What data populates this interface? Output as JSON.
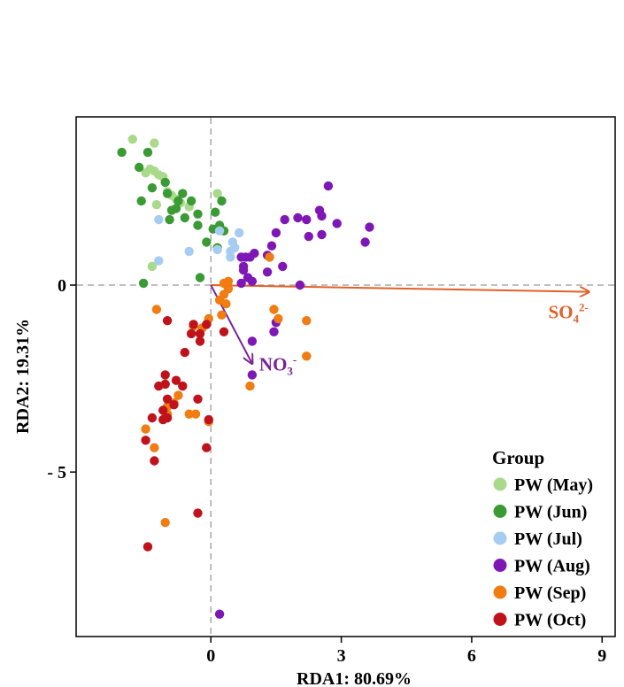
{
  "chart_data": {
    "type": "scatter",
    "title": "",
    "xlabel": "RDA1: 80.69%",
    "ylabel": "RDA2: 19.31%",
    "xlim": [
      -3.1,
      9.3
    ],
    "ylim": [
      -9.4,
      4.5
    ],
    "xticks": [
      0,
      3,
      6,
      9
    ],
    "xtick_labels": [
      "0",
      "3",
      "6",
      "9"
    ],
    "yticks": [
      0,
      -5
    ],
    "ytick_labels": [
      "0",
      "- 5"
    ],
    "reference_lines": {
      "x": 0,
      "y": 0
    },
    "legend_title": "Group",
    "legend_position": "bottom-right",
    "arrows": [
      {
        "name": "SO4",
        "label": "SO",
        "label_sub": "4",
        "label_sup": "2-",
        "x": 8.7,
        "y": -0.18,
        "color": "#E2602A"
      },
      {
        "name": "NO3",
        "label": "NO",
        "label_sub": "3",
        "label_sup": "-",
        "x": 0.95,
        "y": -2.1,
        "color": "#7A2296"
      }
    ],
    "series": [
      {
        "name": "PW (May)",
        "color": "#A9DA8C",
        "points": [
          [
            -1.8,
            3.9
          ],
          [
            -1.3,
            3.8
          ],
          [
            -1.5,
            3.0
          ],
          [
            -1.4,
            3.1
          ],
          [
            -1.3,
            3.05
          ],
          [
            -1.2,
            2.95
          ],
          [
            -1.1,
            2.9
          ],
          [
            -1.0,
            2.5
          ],
          [
            -0.9,
            2.4
          ],
          [
            -0.8,
            2.3
          ],
          [
            -0.7,
            2.2
          ],
          [
            -0.5,
            2.1
          ],
          [
            -1.25,
            2.15
          ],
          [
            0.15,
            2.45
          ],
          [
            -1.35,
            0.5
          ]
        ]
      },
      {
        "name": "PW (Jun)",
        "color": "#3A9A33",
        "points": [
          [
            -2.05,
            3.55
          ],
          [
            -1.45,
            3.55
          ],
          [
            -1.65,
            3.15
          ],
          [
            -1.35,
            2.6
          ],
          [
            -1.05,
            2.75
          ],
          [
            -1.0,
            2.45
          ],
          [
            -0.65,
            2.45
          ],
          [
            -1.6,
            2.25
          ],
          [
            -0.9,
            2.0
          ],
          [
            -0.8,
            2.05
          ],
          [
            -0.75,
            2.25
          ],
          [
            -0.45,
            2.25
          ],
          [
            -0.3,
            1.9
          ],
          [
            -0.6,
            1.8
          ],
          [
            -0.95,
            1.75
          ],
          [
            -0.3,
            1.6
          ],
          [
            0.25,
            2.25
          ],
          [
            0.1,
            1.95
          ],
          [
            0.2,
            1.6
          ],
          [
            0.05,
            1.5
          ],
          [
            0.3,
            1.45
          ],
          [
            -0.1,
            1.15
          ],
          [
            0.15,
            1.0
          ],
          [
            -1.55,
            0.05
          ],
          [
            -0.25,
            0.2
          ]
        ]
      },
      {
        "name": "PW (Jul)",
        "color": "#A6CDF1",
        "points": [
          [
            -1.2,
            1.75
          ],
          [
            0.2,
            1.45
          ],
          [
            0.65,
            1.4
          ],
          [
            0.5,
            1.15
          ],
          [
            0.55,
            1.0
          ],
          [
            0.45,
            0.9
          ],
          [
            -0.5,
            0.9
          ],
          [
            0.45,
            0.75
          ],
          [
            -1.2,
            0.65
          ],
          [
            0.15,
            0.95
          ]
        ]
      },
      {
        "name": "PW (Aug)",
        "color": "#7E17B6",
        "points": [
          [
            2.7,
            2.65
          ],
          [
            2.5,
            2.0
          ],
          [
            2.55,
            1.85
          ],
          [
            2.2,
            1.75
          ],
          [
            2.0,
            1.8
          ],
          [
            1.7,
            1.75
          ],
          [
            2.9,
            1.65
          ],
          [
            3.65,
            1.55
          ],
          [
            2.55,
            1.35
          ],
          [
            2.25,
            1.3
          ],
          [
            1.5,
            1.4
          ],
          [
            1.4,
            1.05
          ],
          [
            3.55,
            1.15
          ],
          [
            1.0,
            0.85
          ],
          [
            0.7,
            0.75
          ],
          [
            0.8,
            0.75
          ],
          [
            0.9,
            0.75
          ],
          [
            1.3,
            0.8
          ],
          [
            0.75,
            0.5
          ],
          [
            0.75,
            0.4
          ],
          [
            1.65,
            0.5
          ],
          [
            1.3,
            0.35
          ],
          [
            0.85,
            0.2
          ],
          [
            0.95,
            0.1
          ],
          [
            0.7,
            0.05
          ],
          [
            2.05,
            0.0
          ],
          [
            1.5,
            -1.0
          ],
          [
            1.45,
            -1.25
          ],
          [
            0.95,
            -1.5
          ],
          [
            0.95,
            -2.4
          ],
          [
            0.2,
            -8.8
          ]
        ]
      },
      {
        "name": "PW (Sep)",
        "color": "#F07C12",
        "points": [
          [
            1.35,
            0.75
          ],
          [
            0.4,
            0.1
          ],
          [
            0.3,
            0.05
          ],
          [
            0.4,
            -0.1
          ],
          [
            0.3,
            -0.25
          ],
          [
            0.2,
            -0.4
          ],
          [
            0.35,
            -0.5
          ],
          [
            1.45,
            -0.65
          ],
          [
            -1.25,
            -0.65
          ],
          [
            1.55,
            -0.9
          ],
          [
            2.2,
            -0.95
          ],
          [
            0.25,
            -0.8
          ],
          [
            -0.05,
            -0.9
          ],
          [
            -0.4,
            -1.1
          ],
          [
            -0.2,
            -1.15
          ],
          [
            2.2,
            -1.9
          ],
          [
            0.9,
            -2.7
          ],
          [
            -0.75,
            -2.95
          ],
          [
            -0.85,
            -3.15
          ],
          [
            -1.0,
            -3.25
          ],
          [
            -1.0,
            -3.45
          ],
          [
            -0.35,
            -3.45
          ],
          [
            -0.5,
            -3.45
          ],
          [
            -1.05,
            -3.55
          ],
          [
            -0.05,
            -3.65
          ],
          [
            -1.5,
            -3.85
          ],
          [
            -1.3,
            -4.35
          ],
          [
            -1.05,
            -6.35
          ]
        ]
      },
      {
        "name": "PW (Oct)",
        "color": "#C0121A",
        "points": [
          [
            -1.0,
            -0.95
          ],
          [
            -0.4,
            -1.05
          ],
          [
            -0.1,
            -1.05
          ],
          [
            0.3,
            -1.25
          ],
          [
            -0.45,
            -1.3
          ],
          [
            -0.25,
            -1.3
          ],
          [
            -0.25,
            -1.5
          ],
          [
            -0.6,
            -1.8
          ],
          [
            -1.05,
            -2.4
          ],
          [
            -1.05,
            -2.65
          ],
          [
            -0.8,
            -2.55
          ],
          [
            -0.65,
            -2.7
          ],
          [
            -1.2,
            -2.7
          ],
          [
            -0.3,
            -3.05
          ],
          [
            -1.0,
            -3.05
          ],
          [
            -0.85,
            -3.2
          ],
          [
            -1.1,
            -3.35
          ],
          [
            -1.35,
            -3.55
          ],
          [
            -1.0,
            -3.55
          ],
          [
            -1.1,
            -3.6
          ],
          [
            -0.05,
            -3.6
          ],
          [
            -1.5,
            -4.15
          ],
          [
            -0.1,
            -4.35
          ],
          [
            -1.3,
            -4.7
          ],
          [
            -0.3,
            -6.1
          ],
          [
            -1.45,
            -7.0
          ]
        ]
      }
    ]
  }
}
